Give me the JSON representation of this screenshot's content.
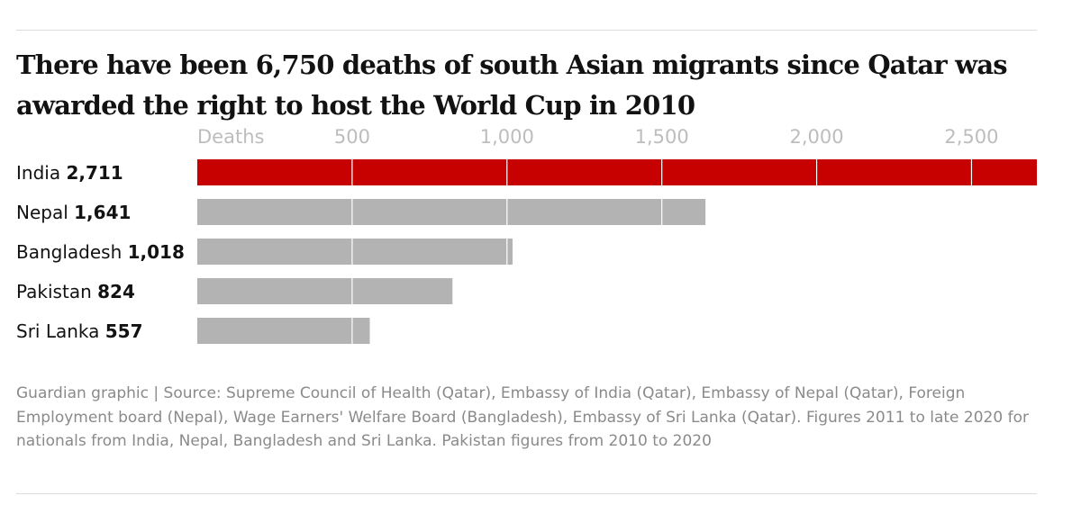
{
  "title": "There have been 6,750 deaths of south Asian migrants since Qatar was awarded the right to host the World Cup in 2010",
  "source": "Guardian graphic | Source: Supreme Council of Health (Qatar), Embassy of India (Qatar), Embassy of Nepal (Qatar), Foreign Employment board (Nepal), Wage Earners' Welfare Board (Bangladesh), Embassy of Sri Lanka (Qatar). Figures 2011 to late 2020 for nationals from India, Nepal, Bangladesh and Sri Lanka. Pakistan figures from 2010 to 2020",
  "chart_data": {
    "type": "bar",
    "orientation": "horizontal",
    "title": "There have been 6,750 deaths of south Asian migrants since Qatar was awarded the right to host the World Cup in 2010",
    "axis_unit_label": "Deaths",
    "categories": [
      "India",
      "Nepal",
      "Bangladesh",
      "Pakistan",
      "Sri Lanka"
    ],
    "values": [
      2711,
      1641,
      1018,
      824,
      557
    ],
    "value_labels": [
      "2,711",
      "1,641",
      "1,018",
      "824",
      "557"
    ],
    "ticks": [
      500,
      1000,
      1500,
      2000,
      2500
    ],
    "tick_labels": [
      "500",
      "1,000",
      "1,500",
      "2,000",
      "2,500"
    ],
    "xlim": [
      0,
      2711
    ],
    "grid": true,
    "legend": "none",
    "colors": {
      "highlight": "#c70000",
      "default": "#b3b3b3",
      "gridline": "#ffffff",
      "tick_text": "#bdbdbd"
    }
  }
}
